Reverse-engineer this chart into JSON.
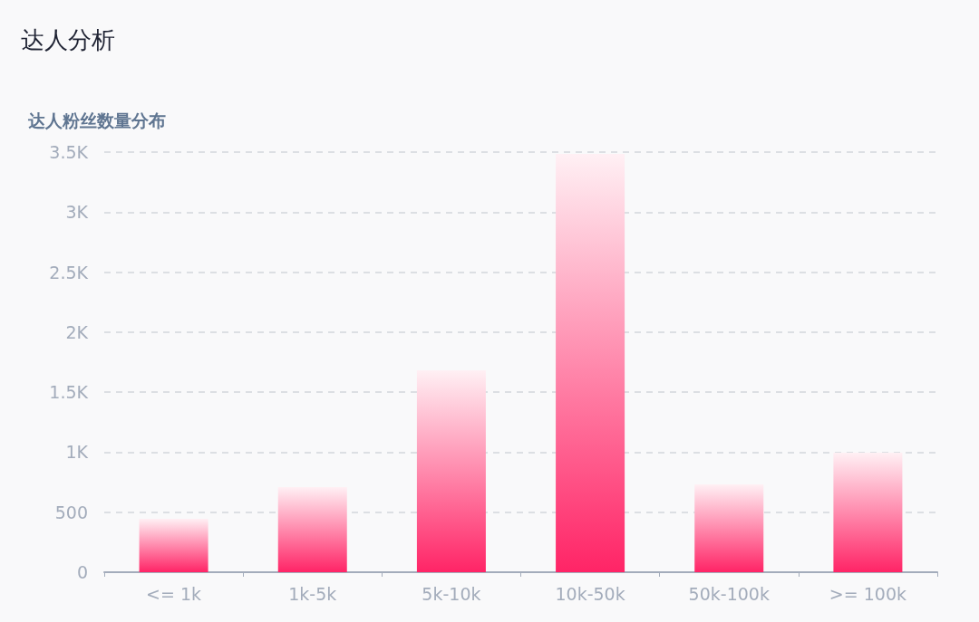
{
  "chart_data": {
    "type": "bar",
    "title": "达人分析",
    "subtitle": "达人粉丝数量分布",
    "categories": [
      "<= 1k",
      "1k-5k",
      "5k-10k",
      "10k-50k",
      "50k-100k",
      ">= 100k"
    ],
    "values": [
      445,
      709,
      1682,
      3484,
      731,
      995
    ],
    "color": "#ff2466",
    "ylim": [
      0,
      3500
    ],
    "yticks": [
      0,
      500,
      {
        "value": 1000,
        "label": "1K"
      },
      {
        "value": 1500,
        "label": "1.5K"
      },
      {
        "value": 2000,
        "label": "2K"
      },
      {
        "value": 2500,
        "label": "2.5K"
      },
      {
        "value": 3000,
        "label": "3K"
      },
      {
        "value": 3500,
        "label": "3.5K"
      }
    ],
    "grid": "y"
  }
}
